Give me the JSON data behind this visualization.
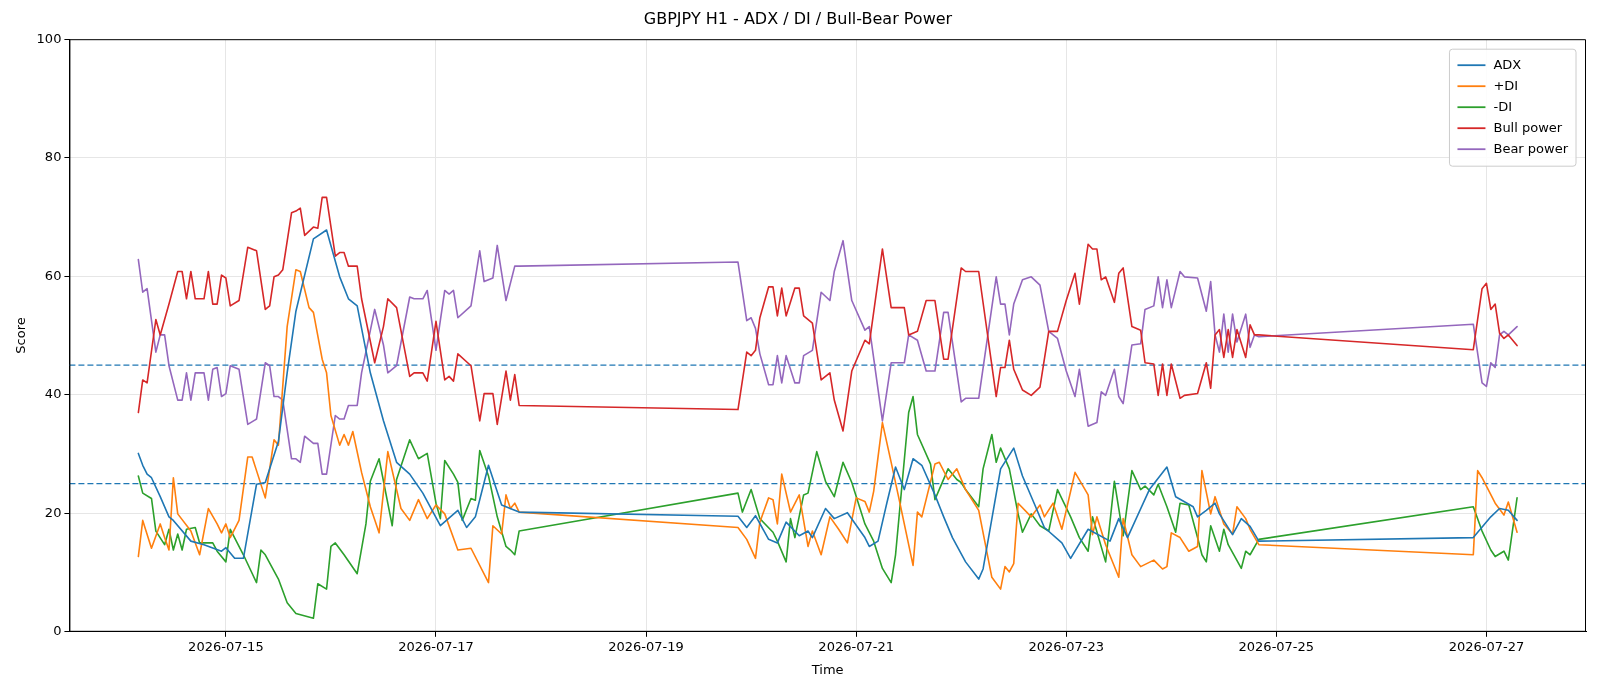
{
  "chart_data": {
    "type": "line",
    "title": "GBPJPY H1 - ADX / DI / Bull-Bear Power",
    "xlabel": "Time",
    "ylabel": "Score",
    "xlim": [
      "2026-07-13T12:15",
      "2026-07-27T22:45"
    ],
    "xticks": [
      "2026-07-15",
      "2026-07-17",
      "2026-07-19",
      "2026-07-21",
      "2026-07-23",
      "2026-07-25",
      "2026-07-27"
    ],
    "ylim": [
      0,
      100
    ],
    "yticks": [
      0,
      20,
      40,
      60,
      80,
      100
    ],
    "grid": true,
    "legend": "top right",
    "marker": "none",
    "line_style": "solid",
    "ref_lines": [
      {
        "axis": "y",
        "value": 45,
        "color": "#1f77b4",
        "line_style": "dashed"
      },
      {
        "axis": "y",
        "value": 25,
        "color": "#1f77b4",
        "line_style": "dashed"
      }
    ],
    "series": [
      {
        "name": "ADX",
        "color": "#1f77b4",
        "x": [
          "2026-07-14T04:00",
          "2026-07-14T05:00",
          "2026-07-14T06:00",
          "2026-07-14T07:00",
          "2026-07-14T09:00",
          "2026-07-14T11:00",
          "2026-07-14T12:00",
          "2026-07-14T16:00",
          "2026-07-14T19:00",
          "2026-07-14T23:00",
          "2026-07-15T00:00",
          "2026-07-15T02:00",
          "2026-07-15T04:00",
          "2026-07-15T07:00",
          "2026-07-15T09:00",
          "2026-07-15T12:00",
          "2026-07-15T14:00",
          "2026-07-15T16:00",
          "2026-07-15T20:00",
          "2026-07-15T23:00",
          "2026-07-16T02:00",
          "2026-07-16T04:00",
          "2026-07-16T06:00",
          "2026-07-16T09:00",
          "2026-07-16T12:00",
          "2026-07-16T15:00",
          "2026-07-16T18:00",
          "2026-07-16T21:00",
          "2026-07-17T01:00",
          "2026-07-17T05:00",
          "2026-07-17T07:00",
          "2026-07-17T09:00",
          "2026-07-17T12:00",
          "2026-07-17T15:00",
          "2026-07-17T19:00",
          "2026-07-19T21:00",
          "2026-07-19T23:00",
          "2026-07-20T01:00",
          "2026-07-20T04:00",
          "2026-07-20T06:00",
          "2026-07-20T08:00",
          "2026-07-20T11:00",
          "2026-07-20T13:00",
          "2026-07-20T14:00",
          "2026-07-20T17:00",
          "2026-07-20T19:00",
          "2026-07-20T22:00",
          "2026-07-21T02:00",
          "2026-07-21T03:00",
          "2026-07-21T05:00",
          "2026-07-21T07:00",
          "2026-07-21T09:00",
          "2026-07-21T11:00",
          "2026-07-21T13:00",
          "2026-07-21T15:00",
          "2026-07-21T18:00",
          "2026-07-21T20:00",
          "2026-07-21T22:00",
          "2026-07-22T01:00",
          "2026-07-22T04:00",
          "2026-07-22T05:00",
          "2026-07-22T09:00",
          "2026-07-22T12:00",
          "2026-07-22T14:00",
          "2026-07-22T17:00",
          "2026-07-22T19:00",
          "2026-07-22T23:00",
          "2026-07-23T01:00",
          "2026-07-23T05:00",
          "2026-07-23T10:00",
          "2026-07-23T12:00",
          "2026-07-23T14:00",
          "2026-07-23T19:00",
          "2026-07-23T23:00",
          "2026-07-24T01:00",
          "2026-07-24T05:00",
          "2026-07-24T06:00",
          "2026-07-24T08:00",
          "2026-07-24T10:00",
          "2026-07-24T11:00",
          "2026-07-24T14:00",
          "2026-07-24T16:00",
          "2026-07-24T18:00",
          "2026-07-24T20:00",
          "2026-07-26T21:00",
          "2026-07-27T01:00",
          "2026-07-27T03:00",
          "2026-07-27T05:00",
          "2026-07-27T07:00"
        ],
        "values": [
          30.1,
          28.1,
          26.6,
          26.0,
          22.8,
          19.4,
          18.8,
          15.3,
          14.7,
          13.6,
          14.2,
          12.4,
          12.4,
          24.9,
          25.2,
          32.1,
          43.7,
          54.1,
          66.3,
          67.8,
          59.9,
          56.2,
          55.0,
          43.7,
          35.6,
          28.6,
          26.6,
          23.4,
          17.9,
          20.5,
          17.6,
          19.4,
          28.1,
          21.4,
          20.2,
          19.5,
          17.6,
          19.6,
          15.6,
          15.0,
          18.5,
          16.2,
          17.0,
          15.9,
          20.8,
          19.1,
          20.1,
          15.9,
          14.4,
          15.3,
          21.7,
          27.8,
          24.0,
          29.2,
          28.1,
          23.1,
          19.4,
          15.9,
          11.8,
          8.9,
          10.6,
          27.5,
          31.0,
          26.3,
          21.1,
          17.6,
          15.0,
          12.4,
          17.3,
          15.3,
          19.1,
          15.9,
          24.0,
          27.8,
          22.8,
          21.1,
          19.4,
          20.5,
          21.7,
          19.9,
          16.4,
          19.1,
          17.8,
          15.3,
          15.9,
          19.4,
          20.8,
          20.5,
          18.8
        ]
      },
      {
        "name": "+DI",
        "color": "#ff7f0e",
        "x": [
          "2026-07-14T04:00",
          "2026-07-14T05:00",
          "2026-07-14T07:00",
          "2026-07-14T09:00",
          "2026-07-14T10:00",
          "2026-07-14T11:00",
          "2026-07-14T12:00",
          "2026-07-14T13:00",
          "2026-07-14T16:00",
          "2026-07-14T18:00",
          "2026-07-14T20:00",
          "2026-07-14T22:00",
          "2026-07-14T23:00",
          "2026-07-15T00:00",
          "2026-07-15T01:00",
          "2026-07-15T03:00",
          "2026-07-15T05:00",
          "2026-07-15T06:00",
          "2026-07-15T09:00",
          "2026-07-15T11:00",
          "2026-07-15T12:00",
          "2026-07-15T14:00",
          "2026-07-15T16:00",
          "2026-07-15T17:00",
          "2026-07-15T19:00",
          "2026-07-15T20:00",
          "2026-07-15T22:00",
          "2026-07-15T23:00",
          "2026-07-16T00:00",
          "2026-07-16T02:00",
          "2026-07-16T03:00",
          "2026-07-16T04:00",
          "2026-07-16T05:00",
          "2026-07-16T07:00",
          "2026-07-16T09:00",
          "2026-07-16T11:00",
          "2026-07-16T13:00",
          "2026-07-16T16:00",
          "2026-07-16T18:00",
          "2026-07-16T20:00",
          "2026-07-16T22:00",
          "2026-07-17T00:00",
          "2026-07-17T02:00",
          "2026-07-17T05:00",
          "2026-07-17T08:00",
          "2026-07-17T12:00",
          "2026-07-17T13:00",
          "2026-07-17T15:00",
          "2026-07-17T16:00",
          "2026-07-17T17:00",
          "2026-07-17T18:00",
          "2026-07-17T19:00",
          "2026-07-19T21:00",
          "2026-07-19T23:00",
          "2026-07-20T01:00",
          "2026-07-20T02:00",
          "2026-07-20T04:00",
          "2026-07-20T05:00",
          "2026-07-20T06:00",
          "2026-07-20T07:00",
          "2026-07-20T09:00",
          "2026-07-20T11:00",
          "2026-07-20T13:00",
          "2026-07-20T14:00",
          "2026-07-20T16:00",
          "2026-07-20T18:00",
          "2026-07-20T20:00",
          "2026-07-20T22:00",
          "2026-07-21T00:00",
          "2026-07-21T02:00",
          "2026-07-21T03:00",
          "2026-07-21T04:00",
          "2026-07-21T06:00",
          "2026-07-21T08:00",
          "2026-07-21T10:00",
          "2026-07-21T13:00",
          "2026-07-21T14:00",
          "2026-07-21T15:00",
          "2026-07-21T18:00",
          "2026-07-21T19:00",
          "2026-07-21T21:00",
          "2026-07-21T23:00",
          "2026-07-22T01:00",
          "2026-07-22T04:00",
          "2026-07-22T07:00",
          "2026-07-22T09:00",
          "2026-07-22T10:00",
          "2026-07-22T11:00",
          "2026-07-22T12:00",
          "2026-07-22T13:00",
          "2026-07-22T16:00",
          "2026-07-22T18:00",
          "2026-07-22T19:00",
          "2026-07-22T21:00",
          "2026-07-22T23:00",
          "2026-07-23T00:00",
          "2026-07-23T02:00",
          "2026-07-23T05:00",
          "2026-07-23T06:00",
          "2026-07-23T07:00",
          "2026-07-23T09:00",
          "2026-07-23T12:00",
          "2026-07-23T13:00",
          "2026-07-23T15:00",
          "2026-07-23T17:00",
          "2026-07-23T20:00",
          "2026-07-23T22:00",
          "2026-07-23T23:00",
          "2026-07-24T00:00",
          "2026-07-24T02:00",
          "2026-07-24T04:00",
          "2026-07-24T06:00",
          "2026-07-24T07:00",
          "2026-07-24T09:00",
          "2026-07-24T10:00",
          "2026-07-24T12:00",
          "2026-07-24T14:00",
          "2026-07-24T15:00",
          "2026-07-24T17:00",
          "2026-07-24T18:00",
          "2026-07-24T20:00",
          "2026-07-26T21:00",
          "2026-07-26T22:00",
          "2026-07-26T23:00",
          "2026-07-27T02:00",
          "2026-07-27T04:00",
          "2026-07-27T05:00",
          "2026-07-27T07:00"
        ],
        "values": [
          12.7,
          18.8,
          14.1,
          18.2,
          15.9,
          13.8,
          26.0,
          19.9,
          17.0,
          13.0,
          20.8,
          18.2,
          16.7,
          18.2,
          15.9,
          18.8,
          29.5,
          29.5,
          22.6,
          32.4,
          31.5,
          51.5,
          61.1,
          60.8,
          54.7,
          53.9,
          46.0,
          43.7,
          36.5,
          31.5,
          33.3,
          31.5,
          33.8,
          26.9,
          21.1,
          16.7,
          30.4,
          20.8,
          18.8,
          22.3,
          19.1,
          21.4,
          19.9,
          13.8,
          14.1,
          8.3,
          17.9,
          16.5,
          23.1,
          20.8,
          21.7,
          20.2,
          17.6,
          15.6,
          12.4,
          18.5,
          22.6,
          22.3,
          18.2,
          26.6,
          20.2,
          23.1,
          14.4,
          17.0,
          13.0,
          19.4,
          17.3,
          15.0,
          22.6,
          22.0,
          20.2,
          23.7,
          35.3,
          28.6,
          21.7,
          11.2,
          20.2,
          19.4,
          28.3,
          28.6,
          25.7,
          27.5,
          24.0,
          20.5,
          9.2,
          7.2,
          11.0,
          10.1,
          11.5,
          21.7,
          19.4,
          21.4,
          19.4,
          21.7,
          17.3,
          20.5,
          26.9,
          23.1,
          16.4,
          19.4,
          14.7,
          9.2,
          19.1,
          13.0,
          11.0,
          12.1,
          10.6,
          11.0,
          16.7,
          15.9,
          13.6,
          14.4,
          27.2,
          19.9,
          22.8,
          18.2,
          16.5,
          21.1,
          19.1,
          17.3,
          14.7,
          13.0,
          27.2,
          26.0,
          21.7,
          19.7,
          21.9,
          16.8
        ]
      },
      {
        "name": "-DI",
        "color": "#2ca02c",
        "x": [
          "2026-07-14T04:00",
          "2026-07-14T05:00",
          "2026-07-14T07:00",
          "2026-07-14T08:00",
          "2026-07-14T10:00",
          "2026-07-14T11:00",
          "2026-07-14T12:00",
          "2026-07-14T13:00",
          "2026-07-14T14:00",
          "2026-07-14T15:00",
          "2026-07-14T17:00",
          "2026-07-14T18:00",
          "2026-07-14T21:00",
          "2026-07-14T22:00",
          "2026-07-15T00:00",
          "2026-07-15T01:00",
          "2026-07-15T04:00",
          "2026-07-15T07:00",
          "2026-07-15T08:00",
          "2026-07-15T09:00",
          "2026-07-15T12:00",
          "2026-07-15T14:00",
          "2026-07-15T16:00",
          "2026-07-15T20:00",
          "2026-07-15T21:00",
          "2026-07-15T23:00",
          "2026-07-16T00:00",
          "2026-07-16T01:00",
          "2026-07-16T03:00",
          "2026-07-16T06:00",
          "2026-07-16T08:00",
          "2026-07-16T09:00",
          "2026-07-16T11:00",
          "2026-07-16T14:00",
          "2026-07-16T15:00",
          "2026-07-16T18:00",
          "2026-07-16T20:00",
          "2026-07-16T22:00",
          "2026-07-17T00:00",
          "2026-07-17T01:00",
          "2026-07-17T02:00",
          "2026-07-17T04:00",
          "2026-07-17T05:00",
          "2026-07-17T06:00",
          "2026-07-17T08:00",
          "2026-07-17T09:00",
          "2026-07-17T10:00",
          "2026-07-17T12:00",
          "2026-07-17T14:00",
          "2026-07-17T16:00",
          "2026-07-17T17:00",
          "2026-07-17T18:00",
          "2026-07-17T19:00",
          "2026-07-19T21:00",
          "2026-07-19T22:00",
          "2026-07-20T00:00",
          "2026-07-20T02:00",
          "2026-07-20T05:00",
          "2026-07-20T06:00",
          "2026-07-20T08:00",
          "2026-07-20T09:00",
          "2026-07-20T10:00",
          "2026-07-20T12:00",
          "2026-07-20T13:00",
          "2026-07-20T15:00",
          "2026-07-20T17:00",
          "2026-07-20T19:00",
          "2026-07-20T21:00",
          "2026-07-20T23:00",
          "2026-07-21T02:00",
          "2026-07-21T04:00",
          "2026-07-21T06:00",
          "2026-07-21T08:00",
          "2026-07-21T09:00",
          "2026-07-21T12:00",
          "2026-07-21T13:00",
          "2026-07-21T14:00",
          "2026-07-21T17:00",
          "2026-07-21T18:00",
          "2026-07-21T21:00",
          "2026-07-21T23:00",
          "2026-07-22T00:00",
          "2026-07-22T01:00",
          "2026-07-22T04:00",
          "2026-07-22T05:00",
          "2026-07-22T07:00",
          "2026-07-22T08:00",
          "2026-07-22T09:00",
          "2026-07-22T11:00",
          "2026-07-22T13:00",
          "2026-07-22T14:00",
          "2026-07-22T16:00",
          "2026-07-22T18:00",
          "2026-07-22T20:00",
          "2026-07-22T22:00",
          "2026-07-23T01:00",
          "2026-07-23T03:00",
          "2026-07-23T05:00",
          "2026-07-23T06:00",
          "2026-07-23T09:00",
          "2026-07-23T11:00",
          "2026-07-23T13:00",
          "2026-07-23T15:00",
          "2026-07-23T17:00",
          "2026-07-23T18:00",
          "2026-07-23T20:00",
          "2026-07-23T21:00",
          "2026-07-23T23:00",
          "2026-07-24T01:00",
          "2026-07-24T02:00",
          "2026-07-24T04:00",
          "2026-07-24T06:00",
          "2026-07-24T07:00",
          "2026-07-24T08:00",
          "2026-07-24T09:00",
          "2026-07-24T11:00",
          "2026-07-24T12:00",
          "2026-07-24T13:00",
          "2026-07-24T16:00",
          "2026-07-24T17:00",
          "2026-07-24T18:00",
          "2026-07-24T20:00",
          "2026-07-26T21:00",
          "2026-07-26T23:00",
          "2026-07-27T01:00",
          "2026-07-27T02:00",
          "2026-07-27T04:00",
          "2026-07-27T05:00",
          "2026-07-27T07:00"
        ],
        "values": [
          26.3,
          23.4,
          22.5,
          17.0,
          14.7,
          17.3,
          13.8,
          16.5,
          13.8,
          17.3,
          17.6,
          15.0,
          15.0,
          13.6,
          11.8,
          17.3,
          13.0,
          8.3,
          13.8,
          13.0,
          8.9,
          4.9,
          3.1,
          2.3,
          8.1,
          7.2,
          14.4,
          15.0,
          13.0,
          9.8,
          18.2,
          25.4,
          29.2,
          17.9,
          25.7,
          32.4,
          29.2,
          30.1,
          21.7,
          19.1,
          28.9,
          26.6,
          25.2,
          18.8,
          22.5,
          22.2,
          30.6,
          26.3,
          19.4,
          14.4,
          13.8,
          13.0,
          17.0,
          23.4,
          20.2,
          24.0,
          19.1,
          16.8,
          15.3,
          11.8,
          19.1,
          15.9,
          23.1,
          23.4,
          30.4,
          25.4,
          22.8,
          28.6,
          25.2,
          18.2,
          15.3,
          10.7,
          8.3,
          13.0,
          37.0,
          39.7,
          33.3,
          28.3,
          22.3,
          27.5,
          25.7,
          25.2,
          24.0,
          21.1,
          27.5,
          33.3,
          28.6,
          31.0,
          27.5,
          19.9,
          16.8,
          19.9,
          17.9,
          17.0,
          24.0,
          19.4,
          15.9,
          13.6,
          19.4,
          11.8,
          25.4,
          16.2,
          27.2,
          24.0,
          24.6,
          23.1,
          24.9,
          21.1,
          16.8,
          21.7,
          21.4,
          15.9,
          13.0,
          11.8,
          17.9,
          13.6,
          17.3,
          14.7,
          10.7,
          13.6,
          13.0,
          15.6,
          21.1,
          17.0,
          13.8,
          12.7,
          13.6,
          12.1,
          22.6
        ]
      },
      {
        "name": "Bull power",
        "color": "#d62728",
        "x": [
          "2026-07-14T04:00",
          "2026-07-14T05:00",
          "2026-07-14T06:00",
          "2026-07-14T08:00",
          "2026-07-14T09:00",
          "2026-07-14T11:00",
          "2026-07-14T13:00",
          "2026-07-14T14:00",
          "2026-07-14T15:00",
          "2026-07-14T16:00",
          "2026-07-14T17:00",
          "2026-07-14T19:00",
          "2026-07-14T20:00",
          "2026-07-14T21:00",
          "2026-07-14T22:00",
          "2026-07-14T23:00",
          "2026-07-15T00:00",
          "2026-07-15T01:00",
          "2026-07-15T03:00",
          "2026-07-15T05:00",
          "2026-07-15T07:00",
          "2026-07-15T09:00",
          "2026-07-15T10:00",
          "2026-07-15T11:00",
          "2026-07-15T12:00",
          "2026-07-15T13:00",
          "2026-07-15T15:00",
          "2026-07-15T16:00",
          "2026-07-15T17:00",
          "2026-07-15T18:00",
          "2026-07-15T20:00",
          "2026-07-15T21:00",
          "2026-07-15T22:00",
          "2026-07-15T23:00",
          "2026-07-16T01:00",
          "2026-07-16T02:00",
          "2026-07-16T03:00",
          "2026-07-16T04:00",
          "2026-07-16T06:00",
          "2026-07-16T07:00",
          "2026-07-16T10:00",
          "2026-07-16T12:00",
          "2026-07-16T13:00",
          "2026-07-16T15:00",
          "2026-07-16T18:00",
          "2026-07-16T19:00",
          "2026-07-16T21:00",
          "2026-07-16T22:00",
          "2026-07-17T00:00",
          "2026-07-17T02:00",
          "2026-07-17T03:00",
          "2026-07-17T04:00",
          "2026-07-17T05:00",
          "2026-07-17T08:00",
          "2026-07-17T10:00",
          "2026-07-17T11:00",
          "2026-07-17T13:00",
          "2026-07-17T14:00",
          "2026-07-17T16:00",
          "2026-07-17T17:00",
          "2026-07-17T18:00",
          "2026-07-17T19:00",
          "2026-07-19T21:00",
          "2026-07-19T23:00",
          "2026-07-20T00:00",
          "2026-07-20T01:00",
          "2026-07-20T02:00",
          "2026-07-20T04:00",
          "2026-07-20T05:00",
          "2026-07-20T06:00",
          "2026-07-20T07:00",
          "2026-07-20T08:00",
          "2026-07-20T10:00",
          "2026-07-20T11:00",
          "2026-07-20T12:00",
          "2026-07-20T14:00",
          "2026-07-20T16:00",
          "2026-07-20T18:00",
          "2026-07-20T19:00",
          "2026-07-20T21:00",
          "2026-07-20T23:00",
          "2026-07-21T02:00",
          "2026-07-21T03:00",
          "2026-07-21T06:00",
          "2026-07-21T08:00",
          "2026-07-21T11:00",
          "2026-07-21T12:00",
          "2026-07-21T14:00",
          "2026-07-21T16:00",
          "2026-07-21T18:00",
          "2026-07-21T20:00",
          "2026-07-21T21:00",
          "2026-07-22T00:00",
          "2026-07-22T01:00",
          "2026-07-22T04:00",
          "2026-07-22T08:00",
          "2026-07-22T09:00",
          "2026-07-22T10:00",
          "2026-07-22T11:00",
          "2026-07-22T12:00",
          "2026-07-22T14:00",
          "2026-07-22T16:00",
          "2026-07-22T18:00",
          "2026-07-22T20:00",
          "2026-07-22T22:00",
          "2026-07-23T00:00",
          "2026-07-23T02:00",
          "2026-07-23T03:00",
          "2026-07-23T05:00",
          "2026-07-23T06:00",
          "2026-07-23T07:00",
          "2026-07-23T08:00",
          "2026-07-23T09:00",
          "2026-07-23T11:00",
          "2026-07-23T12:00",
          "2026-07-23T13:00",
          "2026-07-23T15:00",
          "2026-07-23T17:00",
          "2026-07-23T18:00",
          "2026-07-23T20:00",
          "2026-07-23T21:00",
          "2026-07-23T22:00",
          "2026-07-23T23:00",
          "2026-07-24T00:00",
          "2026-07-24T02:00",
          "2026-07-24T03:00",
          "2026-07-24T06:00",
          "2026-07-24T08:00",
          "2026-07-24T09:00",
          "2026-07-24T10:00",
          "2026-07-24T11:00",
          "2026-07-24T12:00",
          "2026-07-24T13:00",
          "2026-07-24T14:00",
          "2026-07-24T15:00",
          "2026-07-24T17:00",
          "2026-07-24T18:00",
          "2026-07-24T19:00",
          "2026-07-24T20:00",
          "2026-07-26T21:00",
          "2026-07-26T23:00",
          "2026-07-27T00:00",
          "2026-07-27T01:00",
          "2026-07-27T02:00",
          "2026-07-27T03:00",
          "2026-07-27T04:00",
          "2026-07-27T05:00",
          "2026-07-27T07:00"
        ],
        "values": [
          37.0,
          42.5,
          42.0,
          52.7,
          50.1,
          55.3,
          60.8,
          60.8,
          56.2,
          60.8,
          56.2,
          56.2,
          60.8,
          55.3,
          55.3,
          60.2,
          59.7,
          55.0,
          55.9,
          64.9,
          64.3,
          54.4,
          55.0,
          59.9,
          60.2,
          61.1,
          70.7,
          71.0,
          71.5,
          66.9,
          68.3,
          68.1,
          73.3,
          73.3,
          63.4,
          64.0,
          64.0,
          61.7,
          61.7,
          56.2,
          45.4,
          51.5,
          56.2,
          54.7,
          43.1,
          43.7,
          43.7,
          42.3,
          52.4,
          42.5,
          43.1,
          42.3,
          46.9,
          44.9,
          35.6,
          40.2,
          40.2,
          35.0,
          44.0,
          39.1,
          43.4,
          38.2,
          37.5,
          47.2,
          46.6,
          47.5,
          53.0,
          58.2,
          58.2,
          53.3,
          58.0,
          53.3,
          58.0,
          58.0,
          53.3,
          52.1,
          42.5,
          43.7,
          39.1,
          33.9,
          44.0,
          49.2,
          48.6,
          64.6,
          54.7,
          54.7,
          50.1,
          50.7,
          55.9,
          55.9,
          46.0,
          46.0,
          61.4,
          60.8,
          60.8,
          39.7,
          44.6,
          44.6,
          49.2,
          44.3,
          40.8,
          39.9,
          41.3,
          50.7,
          50.7,
          55.9,
          60.5,
          55.3,
          65.4,
          64.6,
          64.6,
          59.4,
          59.9,
          55.6,
          60.5,
          61.4,
          51.5,
          50.9,
          45.4,
          45.2,
          39.9,
          45.2,
          39.9,
          45.2,
          39.4,
          39.9,
          40.2,
          45.4,
          41.1,
          50.1,
          51.0,
          46.3,
          51.0,
          46.3,
          51.0,
          46.3,
          51.8,
          50.1,
          50.1,
          47.6,
          57.9,
          58.8,
          54.4,
          55.3,
          50.4,
          49.5,
          50.1,
          48.3
        ]
      },
      {
        "name": "Bear power",
        "color": "#9467bd",
        "x": [
          "2026-07-14T04:00",
          "2026-07-14T05:00",
          "2026-07-14T06:00",
          "2026-07-14T08:00",
          "2026-07-14T09:00",
          "2026-07-14T10:00",
          "2026-07-14T11:00",
          "2026-07-14T13:00",
          "2026-07-14T14:00",
          "2026-07-14T15:00",
          "2026-07-14T16:00",
          "2026-07-14T17:00",
          "2026-07-14T19:00",
          "2026-07-14T20:00",
          "2026-07-14T21:00",
          "2026-07-14T22:00",
          "2026-07-14T23:00",
          "2026-07-15T00:00",
          "2026-07-15T01:00",
          "2026-07-15T03:00",
          "2026-07-15T05:00",
          "2026-07-15T07:00",
          "2026-07-15T09:00",
          "2026-07-15T10:00",
          "2026-07-15T11:00",
          "2026-07-15T12:00",
          "2026-07-15T13:00",
          "2026-07-15T15:00",
          "2026-07-15T16:00",
          "2026-07-15T17:00",
          "2026-07-15T18:00",
          "2026-07-15T20:00",
          "2026-07-15T21:00",
          "2026-07-15T22:00",
          "2026-07-15T23:00",
          "2026-07-16T01:00",
          "2026-07-16T02:00",
          "2026-07-16T03:00",
          "2026-07-16T04:00",
          "2026-07-16T06:00",
          "2026-07-16T07:00",
          "2026-07-16T10:00",
          "2026-07-16T12:00",
          "2026-07-16T13:00",
          "2026-07-16T15:00",
          "2026-07-16T18:00",
          "2026-07-16T19:00",
          "2026-07-16T21:00",
          "2026-07-16T22:00",
          "2026-07-17T00:00",
          "2026-07-17T02:00",
          "2026-07-17T03:00",
          "2026-07-17T04:00",
          "2026-07-17T05:00",
          "2026-07-17T08:00",
          "2026-07-17T10:00",
          "2026-07-17T11:00",
          "2026-07-17T13:00",
          "2026-07-17T14:00",
          "2026-07-17T16:00",
          "2026-07-17T18:00",
          "2026-07-17T19:00",
          "2026-07-19T21:00",
          "2026-07-19T23:00",
          "2026-07-20T00:00",
          "2026-07-20T01:00",
          "2026-07-20T02:00",
          "2026-07-20T04:00",
          "2026-07-20T05:00",
          "2026-07-20T06:00",
          "2026-07-20T07:00",
          "2026-07-20T08:00",
          "2026-07-20T10:00",
          "2026-07-20T11:00",
          "2026-07-20T12:00",
          "2026-07-20T14:00",
          "2026-07-20T16:00",
          "2026-07-20T18:00",
          "2026-07-20T19:00",
          "2026-07-20T21:00",
          "2026-07-20T23:00",
          "2026-07-21T02:00",
          "2026-07-21T03:00",
          "2026-07-21T06:00",
          "2026-07-21T08:00",
          "2026-07-21T11:00",
          "2026-07-21T12:00",
          "2026-07-21T14:00",
          "2026-07-21T16:00",
          "2026-07-21T18:00",
          "2026-07-21T20:00",
          "2026-07-21T21:00",
          "2026-07-22T00:00",
          "2026-07-22T01:00",
          "2026-07-22T04:00",
          "2026-07-22T08:00",
          "2026-07-22T09:00",
          "2026-07-22T10:00",
          "2026-07-22T11:00",
          "2026-07-22T12:00",
          "2026-07-22T14:00",
          "2026-07-22T16:00",
          "2026-07-22T18:00",
          "2026-07-22T20:00",
          "2026-07-22T22:00",
          "2026-07-23T00:00",
          "2026-07-23T02:00",
          "2026-07-23T03:00",
          "2026-07-23T05:00",
          "2026-07-23T07:00",
          "2026-07-23T08:00",
          "2026-07-23T09:00",
          "2026-07-23T11:00",
          "2026-07-23T12:00",
          "2026-07-23T13:00",
          "2026-07-23T15:00",
          "2026-07-23T17:00",
          "2026-07-23T18:00",
          "2026-07-23T20:00",
          "2026-07-23T21:00",
          "2026-07-23T22:00",
          "2026-07-23T23:00",
          "2026-07-24T00:00",
          "2026-07-24T02:00",
          "2026-07-24T03:00",
          "2026-07-24T06:00",
          "2026-07-24T08:00",
          "2026-07-24T09:00",
          "2026-07-24T10:00",
          "2026-07-24T11:00",
          "2026-07-24T12:00",
          "2026-07-24T13:00",
          "2026-07-24T14:00",
          "2026-07-24T15:00",
          "2026-07-24T17:00",
          "2026-07-24T18:00",
          "2026-07-24T19:00",
          "2026-07-24T20:00",
          "2026-07-26T21:00",
          "2026-07-26T23:00",
          "2026-07-27T00:00",
          "2026-07-27T01:00",
          "2026-07-27T02:00",
          "2026-07-27T03:00",
          "2026-07-27T04:00",
          "2026-07-27T05:00",
          "2026-07-27T07:00"
        ],
        "values": [
          62.8,
          57.3,
          57.9,
          47.2,
          50.1,
          50.1,
          44.9,
          39.1,
          39.1,
          43.7,
          39.1,
          43.7,
          43.7,
          39.1,
          44.3,
          44.6,
          39.7,
          40.2,
          44.9,
          44.3,
          35.0,
          35.9,
          45.4,
          44.9,
          39.7,
          39.7,
          39.1,
          29.2,
          29.2,
          28.6,
          33.0,
          31.8,
          31.8,
          26.6,
          26.6,
          36.5,
          35.9,
          35.9,
          38.2,
          38.2,
          43.7,
          54.4,
          48.4,
          43.7,
          44.9,
          56.5,
          56.2,
          56.2,
          57.6,
          47.5,
          57.6,
          57.0,
          57.6,
          53.0,
          55.0,
          64.3,
          59.1,
          59.7,
          65.2,
          55.9,
          61.7,
          61.7,
          62.4,
          52.5,
          53.0,
          51.2,
          46.9,
          41.7,
          41.7,
          46.6,
          42.0,
          46.6,
          42.0,
          42.0,
          46.6,
          47.5,
          57.3,
          55.9,
          60.8,
          66.0,
          55.9,
          50.9,
          51.5,
          35.6,
          45.4,
          45.4,
          50.1,
          49.2,
          44.0,
          44.0,
          53.9,
          53.9,
          38.8,
          39.4,
          39.4,
          59.9,
          55.3,
          55.3,
          50.1,
          55.3,
          59.4,
          59.9,
          58.5,
          50.7,
          49.5,
          44.0,
          39.7,
          44.3,
          34.7,
          35.3,
          40.5,
          39.9,
          44.3,
          39.7,
          38.5,
          48.4,
          48.6,
          54.4,
          55.0,
          59.9,
          54.7,
          59.4,
          54.7,
          60.8,
          59.9,
          59.7,
          54.1,
          59.1,
          50.1,
          47.2,
          53.6,
          47.2,
          53.6,
          48.9,
          53.6,
          48.0,
          50.1,
          49.8,
          51.9,
          42.0,
          41.4,
          45.4,
          44.6,
          50.1,
          50.7,
          50.1,
          51.5
        ]
      }
    ]
  }
}
